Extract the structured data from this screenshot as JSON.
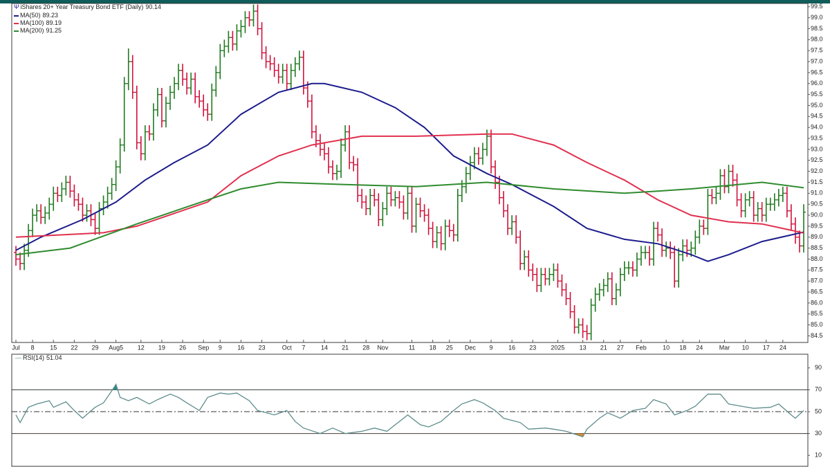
{
  "chart_data": [
    {
      "type": "ohlc",
      "title": "iShares 20+ Year Treasury Bond ETF (Daily)",
      "up_color": "#1f7a1f",
      "down_color": "#d0103a",
      "open": [
        88.3,
        88.0,
        87.8,
        88.4,
        89.3,
        90.0,
        90.2,
        89.9,
        90.1,
        90.5,
        91.0,
        90.9,
        91.2,
        91.5,
        91.1,
        90.7,
        90.5,
        90.0,
        90.2,
        89.8,
        89.4,
        90.3,
        90.6,
        91.0,
        91.4,
        92.2,
        93.2,
        96.0,
        97.0,
        95.6,
        93.3,
        92.8,
        93.8,
        93.7,
        94.8,
        95.5,
        94.3,
        95.1,
        95.6,
        96.0,
        96.6,
        96.2,
        95.8,
        96.2,
        95.4,
        95.2,
        94.8,
        94.6,
        95.7,
        96.5,
        97.5,
        97.7,
        98.1,
        97.8,
        98.4,
        98.6,
        99.0,
        98.9,
        99.3,
        98.5,
        97.4,
        97.0,
        96.9,
        96.6,
        96.3,
        96.6,
        96.0,
        96.6,
        96.9,
        97.2,
        95.8,
        95.2,
        93.8,
        93.4,
        93.0,
        92.8,
        92.2,
        91.9,
        92.0,
        93.2,
        93.8,
        92.4,
        92.3,
        90.9,
        90.6,
        90.3,
        90.9,
        90.7,
        89.8,
        90.3,
        91.0,
        90.7,
        90.8,
        90.6,
        90.1,
        91.0,
        89.5,
        90.5,
        90.2,
        90.0,
        89.4,
        88.8,
        89.2,
        88.7,
        89.5,
        89.3,
        89.1,
        90.9,
        91.3,
        91.9,
        92.4,
        92.8,
        92.6,
        93.0,
        93.6,
        92.2,
        91.5,
        90.8,
        90.2,
        89.4,
        89.7,
        89.0,
        87.8,
        88.1,
        87.5,
        87.3,
        86.8,
        87.3,
        87.1,
        87.3,
        87.5,
        87.0,
        86.6,
        86.2,
        85.6,
        84.9,
        85.0,
        84.7,
        84.6,
        85.9,
        86.4,
        86.6,
        86.8,
        87.1,
        86.2,
        86.6,
        87.3,
        87.6,
        87.6,
        87.5,
        88.0,
        88.3,
        88.3,
        88.0,
        89.4,
        89.1,
        88.4,
        88.5,
        88.3,
        87.0,
        88.2,
        88.6,
        88.4,
        88.5,
        89.0,
        89.5,
        89.4,
        90.9,
        90.8,
        91.0,
        91.8,
        91.3,
        92.0,
        91.6,
        90.7,
        90.2,
        90.7,
        90.8,
        90.0,
        90.3,
        90.0,
        90.5,
        90.5,
        90.7,
        90.9,
        91.0,
        90.2,
        89.6,
        89.0,
        88.6
      ],
      "high": [
        88.6,
        88.3,
        88.7,
        89.6,
        90.3,
        90.5,
        90.5,
        90.4,
        90.8,
        91.3,
        91.3,
        91.5,
        91.8,
        91.8,
        91.4,
        91.0,
        90.8,
        90.5,
        90.5,
        90.1,
        90.6,
        90.9,
        91.3,
        91.7,
        92.5,
        93.5,
        96.3,
        97.6,
        97.3,
        95.9,
        93.6,
        94.1,
        94.1,
        95.1,
        95.8,
        95.8,
        95.4,
        95.9,
        96.3,
        96.9,
        96.9,
        96.5,
        96.5,
        96.5,
        95.7,
        95.5,
        95.1,
        96.0,
        96.8,
        97.8,
        98.0,
        98.4,
        98.4,
        98.7,
        98.9,
        99.3,
        99.3,
        99.6,
        99.6,
        98.8,
        97.7,
        97.3,
        97.2,
        96.9,
        96.9,
        96.9,
        96.9,
        97.2,
        97.5,
        97.5,
        96.1,
        95.5,
        94.1,
        93.7,
        93.3,
        93.1,
        92.5,
        92.3,
        93.5,
        94.1,
        94.1,
        92.7,
        92.6,
        91.2,
        90.9,
        91.2,
        91.2,
        91.0,
        90.6,
        91.3,
        91.3,
        91.1,
        91.1,
        90.9,
        91.3,
        91.3,
        90.8,
        90.8,
        90.5,
        90.3,
        89.7,
        89.5,
        89.5,
        89.8,
        89.8,
        89.6,
        91.2,
        91.6,
        92.2,
        92.7,
        93.1,
        93.1,
        93.3,
        93.9,
        93.9,
        92.5,
        91.8,
        91.1,
        90.5,
        90.0,
        90.0,
        89.3,
        88.4,
        88.4,
        87.8,
        87.6,
        87.6,
        87.6,
        87.6,
        87.8,
        87.8,
        87.3,
        86.9,
        86.5,
        85.9,
        85.3,
        85.3,
        85.0,
        86.2,
        86.7,
        86.9,
        87.1,
        87.4,
        87.4,
        86.9,
        87.6,
        87.9,
        87.9,
        87.9,
        88.3,
        88.6,
        88.6,
        88.6,
        89.7,
        89.7,
        89.4,
        88.8,
        88.8,
        88.6,
        88.5,
        88.9,
        88.9,
        88.8,
        89.3,
        89.8,
        89.8,
        91.2,
        91.2,
        91.3,
        92.1,
        92.1,
        92.3,
        92.3,
        91.9,
        91.0,
        91.0,
        91.1,
        91.1,
        90.6,
        90.6,
        90.8,
        90.8,
        91.0,
        91.2,
        91.3,
        91.3,
        90.5,
        89.9,
        89.3,
        90.5
      ],
      "low": [
        87.7,
        87.5,
        87.5,
        88.1,
        89.0,
        89.7,
        89.6,
        89.6,
        89.8,
        90.2,
        90.6,
        90.6,
        90.9,
        90.8,
        90.4,
        90.2,
        89.7,
        89.7,
        89.5,
        89.1,
        89.1,
        90.0,
        90.3,
        90.7,
        91.1,
        91.9,
        92.9,
        95.7,
        95.3,
        93.0,
        92.5,
        92.5,
        93.4,
        93.4,
        94.5,
        94.0,
        94.0,
        94.8,
        95.3,
        95.7,
        95.9,
        95.5,
        95.5,
        95.1,
        94.9,
        94.5,
        94.3,
        94.3,
        95.4,
        96.2,
        97.2,
        97.4,
        97.5,
        97.5,
        98.1,
        98.3,
        98.6,
        98.6,
        98.2,
        97.1,
        96.7,
        96.6,
        96.3,
        96.0,
        96.0,
        95.7,
        95.7,
        96.3,
        96.6,
        95.5,
        94.9,
        93.5,
        93.1,
        92.7,
        92.5,
        91.9,
        91.6,
        91.6,
        91.7,
        92.9,
        92.1,
        92.0,
        90.6,
        90.3,
        90.0,
        90.0,
        90.4,
        89.5,
        89.5,
        90.0,
        90.4,
        90.4,
        90.3,
        89.8,
        89.8,
        89.2,
        89.2,
        89.9,
        89.7,
        89.1,
        88.5,
        88.5,
        88.4,
        88.4,
        89.0,
        88.8,
        88.8,
        90.6,
        91.0,
        91.6,
        92.1,
        92.3,
        92.3,
        92.7,
        91.9,
        91.2,
        90.5,
        89.9,
        89.1,
        89.1,
        88.7,
        87.5,
        87.5,
        87.2,
        87.0,
        86.5,
        86.5,
        86.8,
        86.8,
        87.0,
        86.7,
        86.3,
        85.9,
        85.3,
        84.6,
        84.6,
        84.4,
        84.3,
        84.3,
        85.6,
        86.1,
        86.3,
        86.5,
        85.9,
        85.9,
        86.3,
        87.0,
        87.3,
        87.2,
        87.2,
        87.7,
        88.0,
        87.7,
        87.7,
        88.8,
        88.1,
        88.1,
        88.0,
        86.7,
        86.7,
        87.9,
        88.1,
        88.1,
        88.2,
        88.7,
        89.1,
        89.1,
        90.5,
        90.5,
        90.7,
        91.0,
        91.0,
        91.3,
        90.4,
        89.9,
        89.9,
        90.4,
        89.7,
        89.7,
        89.7,
        89.7,
        90.2,
        90.2,
        90.4,
        90.6,
        89.9,
        89.3,
        88.7,
        88.3,
        88.3
      ],
      "close": [
        88.0,
        87.8,
        88.4,
        89.3,
        90.0,
        90.2,
        89.9,
        90.1,
        90.5,
        91.0,
        90.9,
        91.2,
        91.5,
        91.1,
        90.7,
        90.5,
        90.0,
        90.2,
        89.8,
        89.4,
        90.3,
        90.6,
        91.0,
        91.4,
        92.2,
        93.2,
        96.0,
        97.0,
        95.6,
        93.3,
        92.8,
        93.8,
        93.7,
        94.8,
        95.5,
        94.3,
        95.1,
        95.6,
        96.0,
        96.6,
        96.2,
        95.8,
        96.2,
        95.4,
        95.2,
        94.8,
        94.6,
        95.7,
        96.5,
        97.5,
        97.7,
        98.1,
        97.8,
        98.4,
        98.6,
        99.0,
        98.9,
        99.3,
        98.5,
        97.4,
        97.0,
        96.9,
        96.6,
        96.3,
        96.6,
        96.0,
        96.6,
        96.9,
        97.2,
        95.8,
        95.2,
        93.8,
        93.4,
        93.0,
        92.8,
        92.2,
        91.9,
        92.0,
        93.2,
        93.8,
        92.4,
        92.3,
        90.9,
        90.6,
        90.3,
        90.9,
        90.7,
        89.8,
        90.3,
        91.0,
        90.7,
        90.8,
        90.6,
        90.1,
        91.0,
        89.5,
        90.5,
        90.2,
        90.0,
        89.4,
        88.8,
        89.2,
        88.7,
        89.5,
        89.3,
        89.1,
        90.9,
        91.3,
        91.9,
        92.4,
        92.8,
        92.6,
        93.0,
        93.6,
        92.2,
        91.5,
        90.8,
        90.2,
        89.4,
        89.7,
        89.0,
        87.8,
        88.1,
        87.5,
        87.3,
        86.8,
        87.3,
        87.1,
        87.3,
        87.5,
        87.0,
        86.6,
        86.2,
        85.6,
        84.9,
        85.0,
        84.7,
        84.6,
        85.9,
        86.4,
        86.6,
        86.8,
        87.1,
        86.2,
        86.6,
        87.3,
        87.6,
        87.6,
        87.5,
        88.0,
        88.3,
        88.3,
        88.0,
        89.4,
        89.1,
        88.4,
        88.5,
        88.3,
        87.0,
        88.2,
        88.6,
        88.4,
        88.5,
        89.0,
        89.5,
        89.4,
        90.9,
        90.8,
        91.0,
        91.8,
        91.3,
        92.0,
        91.6,
        90.7,
        90.2,
        90.7,
        90.8,
        90.0,
        90.3,
        90.0,
        90.5,
        90.5,
        90.7,
        90.9,
        91.0,
        90.2,
        89.6,
        89.0,
        88.6,
        90.14
      ],
      "overlays": [
        {
          "name": "MA(50)",
          "color": "#1c1c8c",
          "x": [
            0,
            6,
            16,
            24,
            31,
            38,
            46,
            54,
            63,
            71,
            74,
            83,
            91,
            98,
            105,
            113,
            119,
            129,
            137,
            146,
            154,
            162,
            166,
            171,
            179,
            189
          ],
          "values": [
            88.4,
            89.0,
            89.8,
            90.6,
            91.6,
            92.4,
            93.2,
            94.6,
            95.6,
            96.0,
            96.0,
            95.6,
            94.9,
            94.0,
            92.7,
            91.9,
            91.4,
            90.4,
            89.4,
            88.9,
            88.7,
            88.2,
            87.9,
            88.2,
            88.8,
            89.23
          ]
        },
        {
          "name": "MA(100)",
          "color": "#e0304e",
          "x": [
            0,
            21,
            29,
            46,
            54,
            63,
            71,
            83,
            96,
            113,
            119,
            129,
            137,
            146,
            154,
            162,
            171,
            179,
            189
          ],
          "values": [
            89.0,
            89.2,
            89.5,
            90.6,
            91.8,
            92.7,
            93.2,
            93.6,
            93.6,
            93.7,
            93.7,
            93.2,
            92.4,
            91.6,
            90.7,
            90.0,
            89.7,
            89.6,
            89.19
          ]
        },
        {
          "name": "MA(200)",
          "color": "#2e8b2e",
          "x": [
            0,
            13,
            29,
            46,
            54,
            63,
            79,
            96,
            113,
            129,
            146,
            154,
            162,
            179,
            189
          ],
          "values": [
            88.2,
            88.5,
            89.6,
            90.7,
            91.2,
            91.5,
            91.4,
            91.3,
            91.5,
            91.2,
            91.0,
            91.1,
            91.2,
            91.5,
            91.25
          ]
        }
      ],
      "xlim": [
        -1,
        190
      ],
      "xticks": [
        {
          "value": 0,
          "label": "Jul"
        },
        {
          "value": 4,
          "label": "8"
        },
        {
          "value": 9,
          "label": "15"
        },
        {
          "value": 14,
          "label": "22"
        },
        {
          "value": 19,
          "label": "29"
        },
        {
          "value": 24,
          "label": "Aug5"
        },
        {
          "value": 30,
          "label": "12"
        },
        {
          "value": 35,
          "label": "19"
        },
        {
          "value": 40,
          "label": "26"
        },
        {
          "value": 45,
          "label": "Sep"
        },
        {
          "value": 49,
          "label": "9"
        },
        {
          "value": 54,
          "label": "16"
        },
        {
          "value": 59,
          "label": "23"
        },
        {
          "value": 65,
          "label": "Oct"
        },
        {
          "value": 69,
          "label": "7"
        },
        {
          "value": 74,
          "label": "14"
        },
        {
          "value": 79,
          "label": "21"
        },
        {
          "value": 84,
          "label": "28"
        },
        {
          "value": 88,
          "label": "Nov"
        },
        {
          "value": 95,
          "label": "11"
        },
        {
          "value": 100,
          "label": "18"
        },
        {
          "value": 104,
          "label": "25"
        },
        {
          "value": 109,
          "label": "Dec"
        },
        {
          "value": 114,
          "label": "9"
        },
        {
          "value": 119,
          "label": "16"
        },
        {
          "value": 124,
          "label": "23"
        },
        {
          "value": 130,
          "label": "2025"
        },
        {
          "value": 136,
          "label": "13"
        },
        {
          "value": 141,
          "label": "21"
        },
        {
          "value": 145,
          "label": "27"
        },
        {
          "value": 150,
          "label": "Feb"
        },
        {
          "value": 156,
          "label": "10"
        },
        {
          "value": 160,
          "label": "18"
        },
        {
          "value": 164,
          "label": "24"
        },
        {
          "value": 170,
          "label": "Mar"
        },
        {
          "value": 175,
          "label": "10"
        },
        {
          "value": 180,
          "label": "17"
        },
        {
          "value": 184,
          "label": "24"
        }
      ],
      "ylim": [
        84.2,
        99.65
      ],
      "yticks": [
        84.5,
        {
          "value": 85,
          "label": "85.0"
        },
        85.5,
        {
          "value": 86,
          "label": "86.0"
        },
        86.5,
        {
          "value": 87,
          "label": "87.0"
        },
        87.5,
        {
          "value": 88,
          "label": "88.0"
        },
        88.5,
        {
          "value": 89,
          "label": "89.0"
        },
        89.5,
        {
          "value": 90,
          "label": "90.0"
        },
        90.5,
        {
          "value": 91,
          "label": "91.0"
        },
        91.5,
        {
          "value": 92,
          "label": "92.0"
        },
        92.5,
        {
          "value": 93,
          "label": "93.0"
        },
        93.5,
        {
          "value": 94,
          "label": "94.0"
        },
        94.5,
        {
          "value": 95,
          "label": "95.0"
        },
        95.5,
        {
          "value": 96,
          "label": "96.0"
        },
        96.5,
        {
          "value": 97,
          "label": "97.0"
        },
        97.5,
        {
          "value": 98,
          "label": "98.0"
        },
        98.5,
        {
          "value": 99,
          "label": "99.0"
        },
        99.5
      ]
    },
    {
      "type": "line",
      "name": "RSI(14)",
      "color": "#5e8c8c",
      "overbought_color": "#2a8c8c",
      "oversold_color": "#e08a20",
      "x": [
        0,
        1,
        3,
        5,
        8,
        9,
        12,
        14,
        16,
        19,
        21,
        23,
        24,
        25,
        27,
        29,
        32,
        34,
        37,
        39,
        41,
        44,
        46,
        49,
        51,
        53,
        56,
        58,
        62,
        65,
        67,
        69,
        73,
        76,
        79,
        83,
        86,
        89,
        92,
        94,
        97,
        99,
        102,
        105,
        107,
        110,
        112,
        115,
        117,
        121,
        123,
        127,
        129,
        132,
        136,
        137,
        140,
        142,
        145,
        148,
        151,
        153,
        156,
        158,
        161,
        163,
        166,
        169,
        171,
        174,
        177,
        181,
        183,
        186,
        187,
        189
      ],
      "values": [
        47,
        40,
        54,
        57,
        60,
        54,
        59,
        51,
        44,
        54,
        58,
        69,
        75,
        63,
        60,
        63,
        57,
        61,
        66,
        63,
        58,
        51,
        63,
        67,
        66,
        67,
        60,
        51,
        47,
        51,
        41,
        35,
        30,
        35,
        30,
        32,
        35,
        32,
        41,
        47,
        38,
        36,
        41,
        51,
        57,
        61,
        58,
        51,
        44,
        40,
        34,
        35,
        34,
        32,
        27,
        34,
        44,
        49,
        44,
        51,
        53,
        61,
        57,
        47,
        51,
        55,
        66,
        66,
        57,
        55,
        53,
        54,
        57,
        47,
        44,
        51.04
      ],
      "levels": [
        30,
        50,
        70
      ],
      "xlim": [
        -1,
        190
      ],
      "ylim": [
        0,
        102.5
      ],
      "yticks": [
        10,
        30,
        50,
        70,
        90
      ]
    }
  ]
}
